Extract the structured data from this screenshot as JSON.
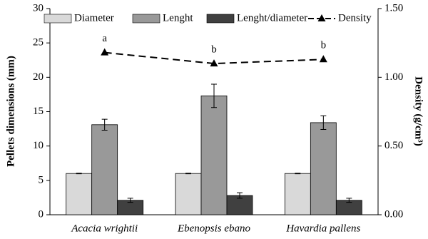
{
  "chart_data": {
    "type": "bar",
    "y_label": "Pellets dimensions (mm)",
    "y2_label": "Density (g/cm³)",
    "categories": [
      "Acacia wrightii",
      "Ebenopsis ebano",
      "Havardia pallens"
    ],
    "series": [
      {
        "name": "Diameter",
        "color": "#d9d9d9",
        "values": [
          6.0,
          6.0,
          6.0
        ],
        "errors": [
          0.05,
          0.05,
          0.05
        ]
      },
      {
        "name": "Lenght",
        "color": "#999999",
        "values": [
          13.1,
          17.3,
          13.4
        ],
        "errors": [
          0.8,
          1.7,
          1.0
        ]
      },
      {
        "name": "Lenght/diameter",
        "color": "#404040",
        "values": [
          2.1,
          2.8,
          2.1
        ],
        "errors": [
          0.3,
          0.4,
          0.3
        ]
      },
      {
        "name": "Density",
        "color": "#000000",
        "type": "line",
        "axis": "y2",
        "dashed": true,
        "marker": "triangle",
        "values": [
          1.18,
          1.1,
          1.13
        ]
      }
    ],
    "annotations": [
      "a",
      "b",
      "b"
    ],
    "ylim": [
      0,
      30
    ],
    "yticks": [
      0,
      5,
      10,
      15,
      20,
      25,
      30
    ],
    "y2lim": [
      0,
      1.5
    ],
    "y2ticks": [
      {
        "value": 0,
        "label": "0.00"
      },
      {
        "value": 0.5,
        "label": "0.50"
      },
      {
        "value": 1,
        "label": "1.00"
      },
      {
        "value": 1.5,
        "label": "1.50"
      }
    ],
    "grid": false,
    "legend": "top"
  }
}
